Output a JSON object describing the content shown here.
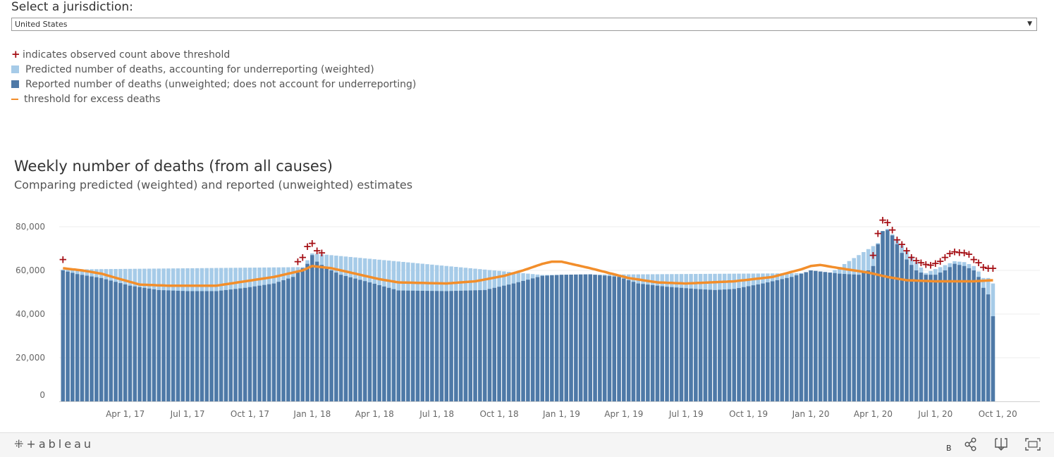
{
  "filter": {
    "label": "Select a jurisdiction:",
    "selected": "United States"
  },
  "legend": {
    "plus_text": "indicates observed count above threshold",
    "predicted_text": "Predicted number of deaths, accounting for underreporting (weighted)",
    "reported_text": "Reported number of deaths (unweighted; does not account for underreporting)",
    "threshold_text": "threshold for excess deaths"
  },
  "colors": {
    "predicted": "#a6cbe8",
    "reported": "#4e79a7",
    "threshold": "#f28e2b",
    "plus": "#a50f15"
  },
  "footer": {
    "brand": "+ableau",
    "b_label": "B"
  },
  "chart_data": {
    "type": "bar",
    "title": "Weekly number of deaths (from all causes)",
    "subtitle": "Comparing predicted (weighted) and reported (unweighted) estimates",
    "xlabel": "",
    "ylabel": "",
    "ylim": [
      0,
      80000
    ],
    "yticks": [
      0,
      20000,
      40000,
      60000,
      80000
    ],
    "ytick_labels": [
      "0",
      "20,000",
      "40,000",
      "60,000",
      "80,000"
    ],
    "xtick_labels": [
      "Apr 1, 17",
      "Jul 1, 17",
      "Oct 1, 17",
      "Jan 1, 18",
      "Apr 1, 18",
      "Jul 1, 18",
      "Oct 1, 18",
      "Jan 1, 19",
      "Apr 1, 19",
      "Jul 1, 19",
      "Oct 1, 19",
      "Jan 1, 20",
      "Apr 1, 20",
      "Jul 1, 20",
      "Oct 1, 20"
    ],
    "xtick_week_index": [
      13,
      26,
      39,
      52,
      65,
      78,
      91,
      104,
      117,
      130,
      143,
      156,
      169,
      182,
      195
    ],
    "week_count": 193,
    "series": [
      {
        "name": "Reported (unweighted)",
        "anchors": [
          [
            0,
            60000
          ],
          [
            3,
            58300
          ],
          [
            8,
            56500
          ],
          [
            14,
            53000
          ],
          [
            20,
            51000
          ],
          [
            26,
            50500
          ],
          [
            32,
            50500
          ],
          [
            38,
            52000
          ],
          [
            44,
            54000
          ],
          [
            48,
            57000
          ],
          [
            50,
            61000
          ],
          [
            51,
            63000
          ],
          [
            52,
            67000
          ],
          [
            53,
            64000
          ],
          [
            55,
            61000
          ],
          [
            58,
            58000
          ],
          [
            64,
            54500
          ],
          [
            68,
            52000
          ],
          [
            70,
            50800
          ],
          [
            80,
            50500
          ],
          [
            88,
            51000
          ],
          [
            94,
            54000
          ],
          [
            100,
            57500
          ],
          [
            104,
            58000
          ],
          [
            110,
            58200
          ],
          [
            116,
            57000
          ],
          [
            120,
            54000
          ],
          [
            126,
            52500
          ],
          [
            132,
            51500
          ],
          [
            136,
            51000
          ],
          [
            140,
            51500
          ],
          [
            146,
            54000
          ],
          [
            152,
            57000
          ],
          [
            155,
            59200
          ],
          [
            156,
            60000
          ],
          [
            162,
            58500
          ],
          [
            166,
            58000
          ],
          [
            168,
            60000
          ],
          [
            169,
            62000
          ],
          [
            170,
            72000
          ],
          [
            171,
            78000
          ],
          [
            172,
            78500
          ],
          [
            173,
            76000
          ],
          [
            174,
            72000
          ],
          [
            175,
            68000
          ],
          [
            176,
            65000
          ],
          [
            178,
            60000
          ],
          [
            180,
            58000
          ],
          [
            182,
            58000
          ],
          [
            184,
            60000
          ],
          [
            186,
            63000
          ],
          [
            188,
            62000
          ],
          [
            190,
            60000
          ],
          [
            191,
            57000
          ],
          [
            192,
            52000
          ],
          [
            193,
            49000
          ],
          [
            194,
            39000
          ]
        ]
      },
      {
        "name": "Predicted (weighted)",
        "anchors": [
          [
            0,
            60400
          ],
          [
            50,
            61500
          ],
          [
            52,
            67800
          ],
          [
            100,
            57900
          ],
          [
            160,
            58800
          ],
          [
            170,
            72500
          ],
          [
            172,
            79000
          ],
          [
            180,
            58800
          ],
          [
            186,
            64200
          ],
          [
            188,
            63800
          ],
          [
            190,
            62000
          ],
          [
            191,
            59500
          ],
          [
            192,
            56500
          ],
          [
            193,
            56500
          ],
          [
            194,
            54000
          ]
        ]
      },
      {
        "name": "Threshold for excess deaths",
        "anchors": [
          [
            0,
            61000
          ],
          [
            4,
            60000
          ],
          [
            8,
            58500
          ],
          [
            16,
            53500
          ],
          [
            22,
            53000
          ],
          [
            32,
            53000
          ],
          [
            38,
            55000
          ],
          [
            44,
            57000
          ],
          [
            50,
            60000
          ],
          [
            52,
            62000
          ],
          [
            56,
            61000
          ],
          [
            66,
            56000
          ],
          [
            70,
            54500
          ],
          [
            80,
            54000
          ],
          [
            86,
            55000
          ],
          [
            92,
            57500
          ],
          [
            96,
            60000
          ],
          [
            100,
            63000
          ],
          [
            102,
            64000
          ],
          [
            104,
            64000
          ],
          [
            110,
            61000
          ],
          [
            118,
            56500
          ],
          [
            124,
            54500
          ],
          [
            130,
            54000
          ],
          [
            140,
            55000
          ],
          [
            148,
            57000
          ],
          [
            154,
            60500
          ],
          [
            156,
            62000
          ],
          [
            158,
            62500
          ],
          [
            162,
            61000
          ],
          [
            168,
            59000
          ],
          [
            172,
            57000
          ],
          [
            176,
            55500
          ],
          [
            182,
            55000
          ],
          [
            190,
            55000
          ],
          [
            194,
            55500
          ]
        ]
      }
    ],
    "above_threshold_markers": [
      {
        "week": 0,
        "value": 65000
      },
      {
        "week": 49,
        "value": 64000
      },
      {
        "week": 50,
        "value": 66000
      },
      {
        "week": 51,
        "value": 71000
      },
      {
        "week": 52,
        "value": 72500
      },
      {
        "week": 53,
        "value": 69000
      },
      {
        "week": 54,
        "value": 68000
      },
      {
        "week": 169,
        "value": 67000
      },
      {
        "week": 170,
        "value": 77000
      },
      {
        "week": 171,
        "value": 83000
      },
      {
        "week": 172,
        "value": 82000
      },
      {
        "week": 173,
        "value": 78500
      },
      {
        "week": 174,
        "value": 74000
      },
      {
        "week": 175,
        "value": 72000
      },
      {
        "week": 176,
        "value": 69000
      },
      {
        "week": 177,
        "value": 66000
      },
      {
        "week": 178,
        "value": 64500
      },
      {
        "week": 179,
        "value": 63500
      },
      {
        "week": 180,
        "value": 62800
      },
      {
        "week": 181,
        "value": 62500
      },
      {
        "week": 182,
        "value": 63200
      },
      {
        "week": 183,
        "value": 64200
      },
      {
        "week": 184,
        "value": 66000
      },
      {
        "week": 185,
        "value": 67800
      },
      {
        "week": 186,
        "value": 68500
      },
      {
        "week": 187,
        "value": 68300
      },
      {
        "week": 188,
        "value": 68000
      },
      {
        "week": 189,
        "value": 67500
      },
      {
        "week": 190,
        "value": 65000
      },
      {
        "week": 191,
        "value": 63500
      },
      {
        "week": 192,
        "value": 61500
      },
      {
        "week": 193,
        "value": 61000
      },
      {
        "week": 194,
        "value": 61000
      }
    ]
  }
}
